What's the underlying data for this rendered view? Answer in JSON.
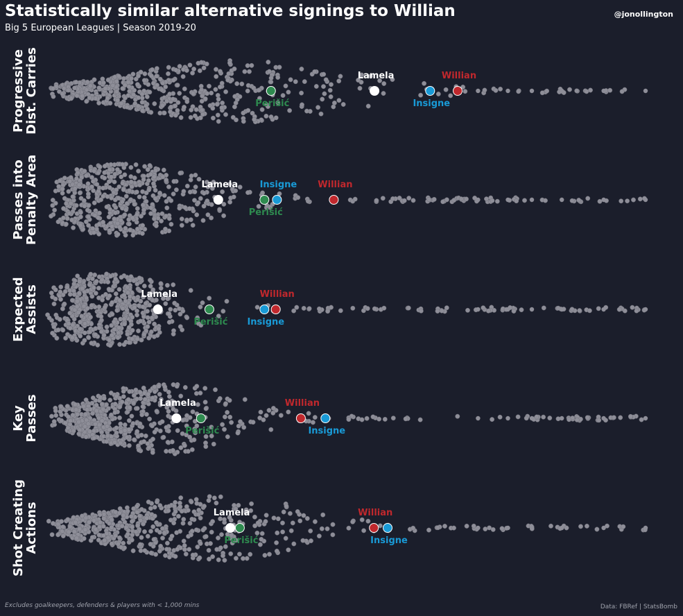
{
  "header": {
    "title": "Statistically similar alternative signings to Willian",
    "subtitle": "Big 5 European Leagues | Season 2019-20",
    "handle": "@jonollington"
  },
  "footer": {
    "note": "Excludes goalkeepers, defenders & players with < 1,000 mins",
    "source": "Data: FBRef | StatsBomb"
  },
  "colors": {
    "background": "#1b1e2b",
    "dots": "#8e8e98",
    "Willian": "#c0282d",
    "Lamela": "#ffffff",
    "Insigne": "#199ad6",
    "Perišić": "#2e8a4f"
  },
  "chart_data": {
    "type": "scatter",
    "subtype": "beeswarm",
    "x_scale": "normalized 0-1 per metric",
    "rows": [
      {
        "label": [
          "Progressive",
          "Dist. Carries"
        ],
        "highlights": [
          {
            "name": "Lamela",
            "x": 0.547,
            "label_pos": "above"
          },
          {
            "name": "Willian",
            "x": 0.686,
            "label_pos": "above"
          },
          {
            "name": "Insigne",
            "x": 0.64,
            "label_pos": "below"
          },
          {
            "name": "Perišić",
            "x": 0.374,
            "label_pos": "below"
          }
        ]
      },
      {
        "label": [
          "Passes into",
          "Penalty Area"
        ],
        "highlights": [
          {
            "name": "Lamela",
            "x": 0.286,
            "label_pos": "above"
          },
          {
            "name": "Insigne",
            "x": 0.384,
            "label_pos": "above"
          },
          {
            "name": "Willian",
            "x": 0.479,
            "label_pos": "above"
          },
          {
            "name": "Perišić",
            "x": 0.363,
            "label_pos": "below"
          }
        ]
      },
      {
        "label": [
          "Expected",
          "Assists"
        ],
        "highlights": [
          {
            "name": "Lamela",
            "x": 0.185,
            "label_pos": "above"
          },
          {
            "name": "Willian",
            "x": 0.382,
            "label_pos": "above"
          },
          {
            "name": "Insigne",
            "x": 0.363,
            "label_pos": "below"
          },
          {
            "name": "Perišić",
            "x": 0.271,
            "label_pos": "below"
          }
        ]
      },
      {
        "label": [
          "Key",
          "Passes"
        ],
        "highlights": [
          {
            "name": "Lamela",
            "x": 0.216,
            "label_pos": "above"
          },
          {
            "name": "Willian",
            "x": 0.424,
            "label_pos": "above"
          },
          {
            "name": "Insigne",
            "x": 0.465,
            "label_pos": "below"
          },
          {
            "name": "Perišić",
            "x": 0.257,
            "label_pos": "below"
          }
        ]
      },
      {
        "label": [
          "Shot Creating",
          "Actions"
        ],
        "highlights": [
          {
            "name": "Lamela",
            "x": 0.306,
            "label_pos": "above"
          },
          {
            "name": "Willian",
            "x": 0.546,
            "label_pos": "above"
          },
          {
            "name": "Insigne",
            "x": 0.569,
            "label_pos": "below"
          },
          {
            "name": "Perišić",
            "x": 0.322,
            "label_pos": "below"
          }
        ]
      }
    ]
  }
}
